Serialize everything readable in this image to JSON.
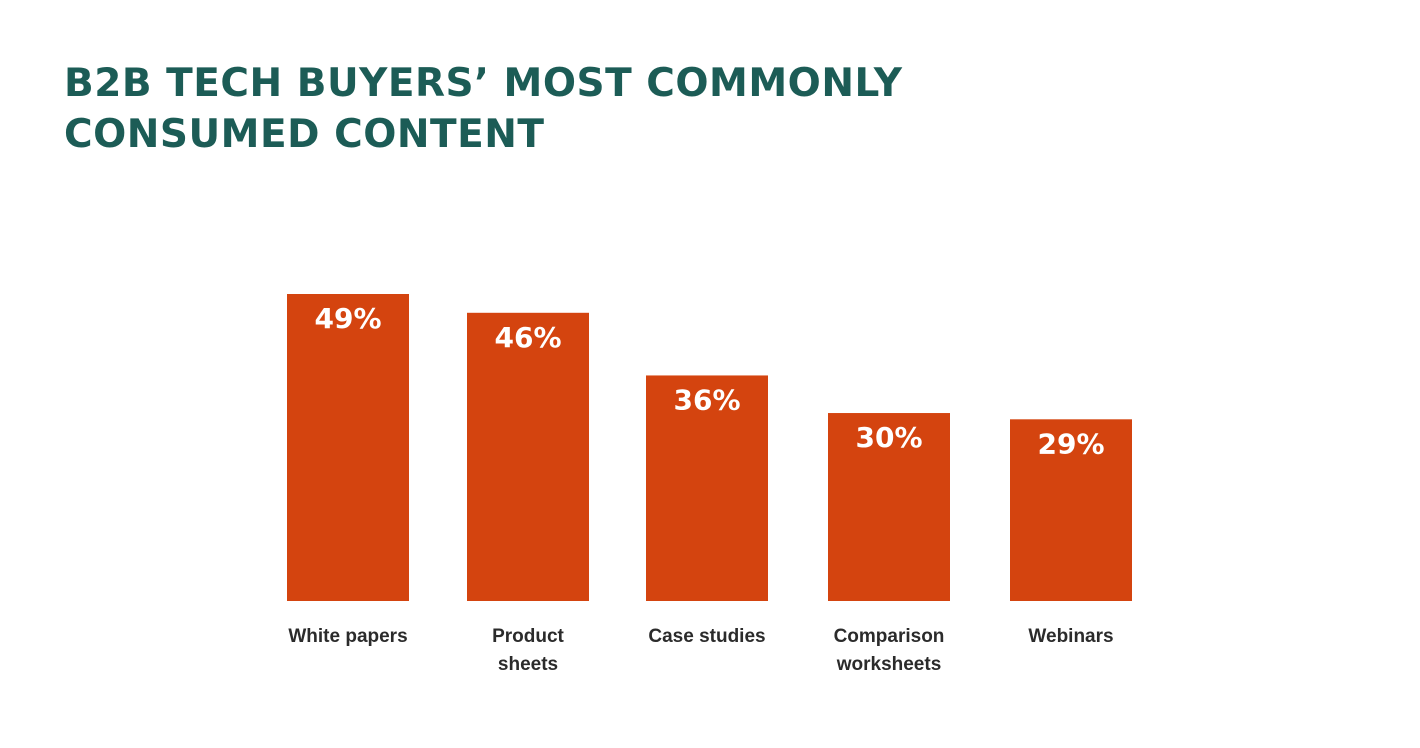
{
  "title_lines": [
    "B2B TECH BUYERS’ MOST COMMONLY",
    "CONSUMED CONTENT"
  ],
  "colors": {
    "title": "#1c5c56",
    "bar": "#d4440f",
    "bar_label": "#ffffff",
    "category_label": "#2b2b2b"
  },
  "chart_data": {
    "type": "bar",
    "title": "B2B TECH BUYERS’ MOST COMMONLY CONSUMED CONTENT",
    "categories": [
      [
        "White papers"
      ],
      [
        "Product",
        "sheets"
      ],
      [
        "Case studies"
      ],
      [
        "Comparison",
        "worksheets"
      ],
      [
        "Webinars"
      ]
    ],
    "values": [
      49,
      46,
      36,
      30,
      29
    ],
    "value_labels": [
      "49%",
      "46%",
      "36%",
      "30%",
      "29%"
    ],
    "unit": "%",
    "xlabel": "",
    "ylabel": "",
    "ylim": [
      0,
      49
    ],
    "grid": false,
    "legend": "none"
  }
}
